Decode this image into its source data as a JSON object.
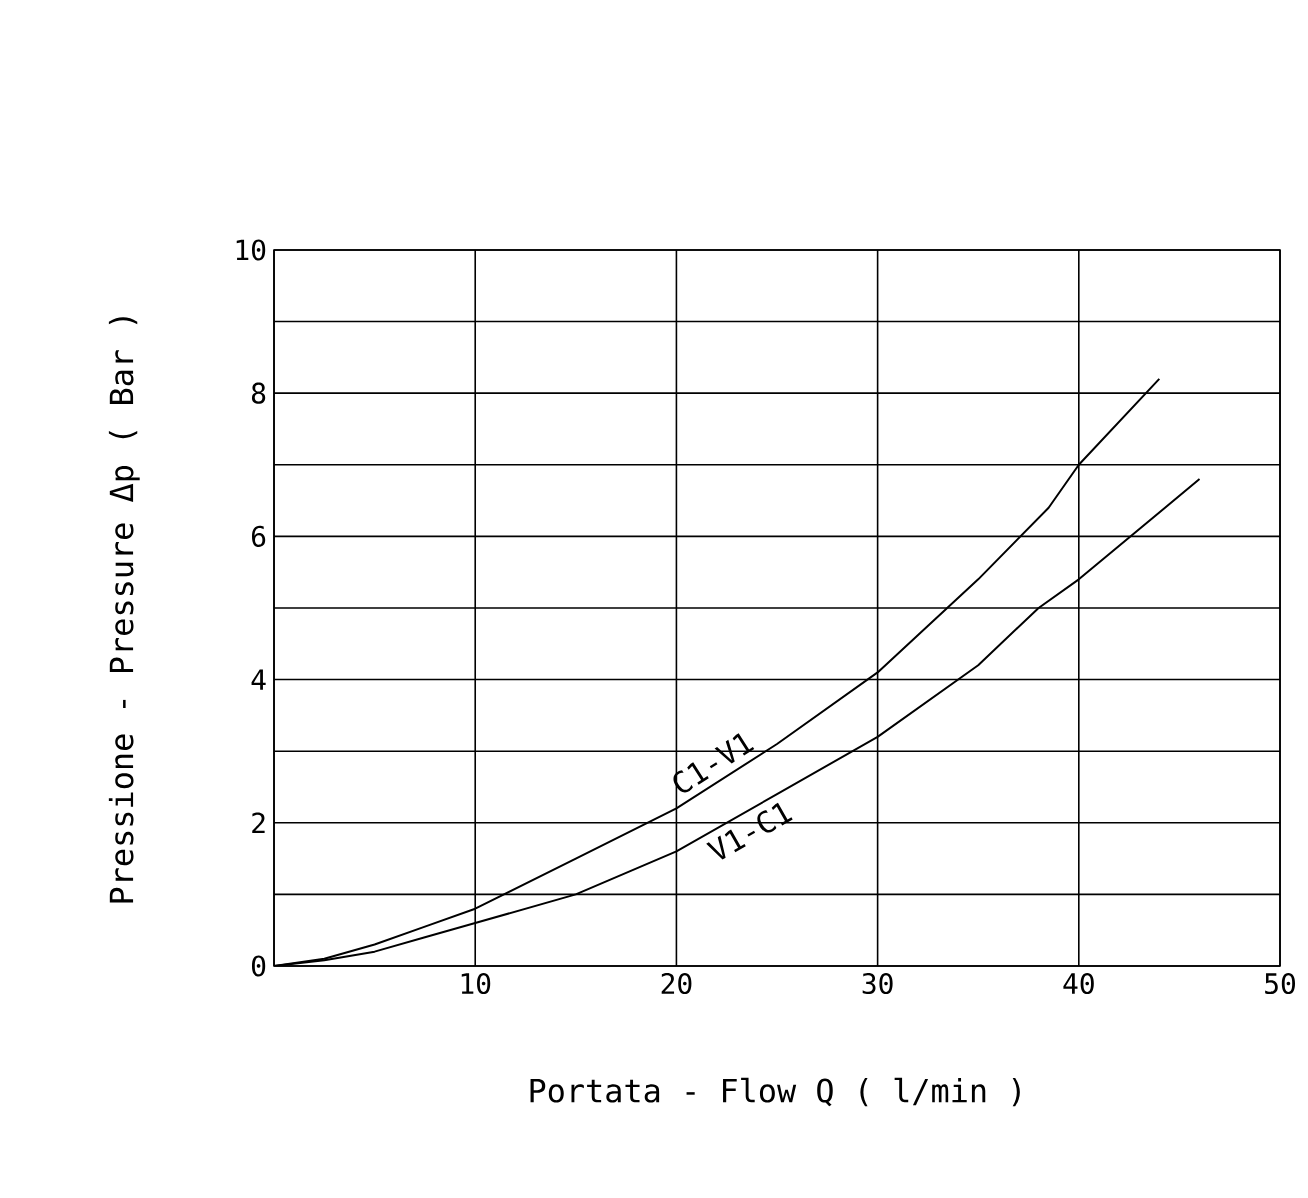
{
  "chart_data": {
    "type": "line",
    "xlabel": "Portata - Flow  Q ( l/min )",
    "ylabel": "Pressione - Pressure Δp ( Bar )",
    "xlim": [
      0,
      50
    ],
    "ylim": [
      0,
      10
    ],
    "xticks": [
      {
        "value": 0,
        "label": null
      },
      10,
      20,
      30,
      40,
      50
    ],
    "yticks": [
      0,
      {
        "value": 1,
        "label": null
      },
      2,
      {
        "value": 3,
        "label": null
      },
      4,
      {
        "value": 5,
        "label": null
      },
      6,
      {
        "value": 7,
        "label": null
      },
      8,
      {
        "value": 9,
        "label": null
      },
      10
    ],
    "grid": true,
    "marker": "none",
    "line_style": "solid",
    "series": [
      {
        "name": "C1-V1",
        "color": "#000000",
        "x": [
          0,
          2.5,
          5,
          7.5,
          10,
          15,
          20,
          25,
          30,
          35,
          38.5,
          40,
          44
        ],
        "values": [
          0,
          0.1,
          0.3,
          0.55,
          0.8,
          1.5,
          2.2,
          3.1,
          4.1,
          5.4,
          6.4,
          7.0,
          8.2
        ]
      },
      {
        "name": "V1-C1",
        "color": "#000000",
        "x": [
          0,
          2.5,
          5,
          7.5,
          10,
          15,
          20,
          25,
          30,
          35,
          38,
          40,
          46
        ],
        "values": [
          0,
          0.08,
          0.2,
          0.4,
          0.6,
          1.0,
          1.6,
          2.4,
          3.2,
          4.2,
          5.0,
          5.4,
          6.8
        ]
      }
    ]
  }
}
